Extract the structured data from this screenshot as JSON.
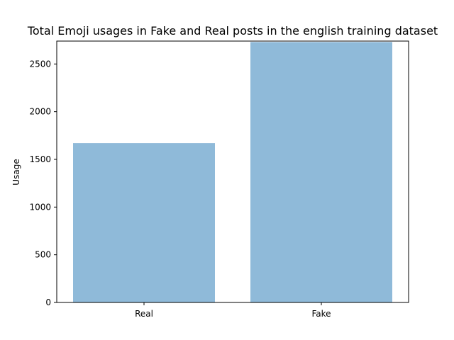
{
  "chart_data": {
    "type": "bar",
    "title": "Total Emoji usages in Fake and Real posts in the english training dataset",
    "xlabel": "",
    "ylabel": "Usage",
    "categories": [
      "Real",
      "Fake"
    ],
    "values": [
      1670,
      2730
    ],
    "ylim": [
      0,
      2740
    ],
    "yticks": [
      0,
      500,
      1000,
      1500,
      2000,
      2500
    ],
    "bar_color": "#8fbad9",
    "grid": false,
    "legend": "none"
  }
}
